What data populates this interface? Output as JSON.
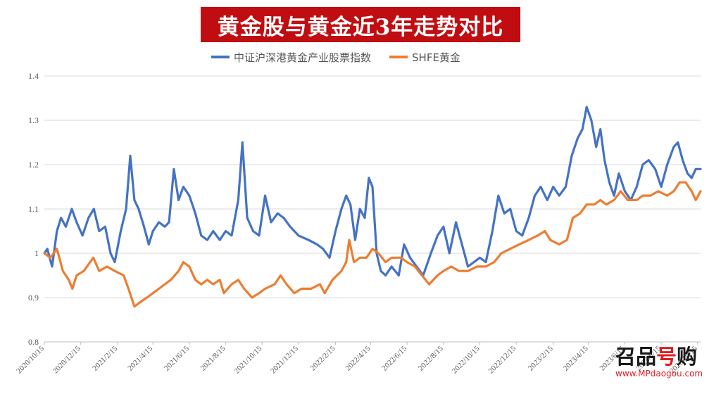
{
  "title": "黄金股与黄金近3年走势对比",
  "watermark": {
    "logo_main": "召品",
    "logo_accent": "号",
    "logo_tail": "购",
    "url": "www.MPdaogou.com"
  },
  "colors": {
    "title_bg": "#c00d12",
    "series_blue": "#4472c4",
    "series_orange": "#ed7d31",
    "grid": "#d9d9d9"
  },
  "chart_data": {
    "type": "line",
    "title": "黄金股与黄金近3年走势对比",
    "xlabel": "",
    "ylabel": "",
    "ylim": [
      0.8,
      1.4
    ],
    "yticks": [
      "0.8",
      "0.9",
      "1",
      "1.1",
      "1.2",
      "1.3",
      "1.4"
    ],
    "xlim": [
      "2020-10-15",
      "2023-10-20"
    ],
    "xticks": [
      "2020/10/15",
      "2020/12/15",
      "2021/2/15",
      "2021/4/15",
      "2021/6/15",
      "2021/8/15",
      "2021/10/15",
      "2021/12/15",
      "2022/2/15",
      "2022/4/15",
      "2022/6/15",
      "2022/8/15",
      "2022/10/15",
      "2022/12/15",
      "2023/2/15",
      "2023/4/15",
      "2023/6/15",
      "2023/8/15",
      "2023/10/15"
    ],
    "legend_position": "top-center",
    "grid": "horizontal",
    "series": [
      {
        "name": "中证沪深港黄金产业股票指数",
        "color": "#4472c4",
        "points": [
          [
            "2020-10-15",
            1.0
          ],
          [
            "2020-10-20",
            1.01
          ],
          [
            "2020-10-28",
            0.97
          ],
          [
            "2020-11-05",
            1.05
          ],
          [
            "2020-11-12",
            1.08
          ],
          [
            "2020-11-20",
            1.06
          ],
          [
            "2020-11-30",
            1.1
          ],
          [
            "2020-12-08",
            1.07
          ],
          [
            "2020-12-18",
            1.04
          ],
          [
            "2020-12-28",
            1.08
          ],
          [
            "2021-01-06",
            1.1
          ],
          [
            "2021-01-15",
            1.05
          ],
          [
            "2021-01-25",
            1.06
          ],
          [
            "2021-02-03",
            1.0
          ],
          [
            "2021-02-10",
            0.98
          ],
          [
            "2021-02-20",
            1.05
          ],
          [
            "2021-03-01",
            1.1
          ],
          [
            "2021-03-08",
            1.22
          ],
          [
            "2021-03-15",
            1.12
          ],
          [
            "2021-03-22",
            1.1
          ],
          [
            "2021-03-31",
            1.06
          ],
          [
            "2021-04-08",
            1.02
          ],
          [
            "2021-04-15",
            1.05
          ],
          [
            "2021-04-25",
            1.07
          ],
          [
            "2021-05-05",
            1.06
          ],
          [
            "2021-05-12",
            1.07
          ],
          [
            "2021-05-20",
            1.19
          ],
          [
            "2021-05-28",
            1.12
          ],
          [
            "2021-06-05",
            1.15
          ],
          [
            "2021-06-15",
            1.13
          ],
          [
            "2021-06-25",
            1.09
          ],
          [
            "2021-07-05",
            1.04
          ],
          [
            "2021-07-15",
            1.03
          ],
          [
            "2021-07-25",
            1.05
          ],
          [
            "2021-08-05",
            1.03
          ],
          [
            "2021-08-15",
            1.05
          ],
          [
            "2021-08-25",
            1.04
          ],
          [
            "2021-09-05",
            1.12
          ],
          [
            "2021-09-12",
            1.25
          ],
          [
            "2021-09-20",
            1.08
          ],
          [
            "2021-09-30",
            1.05
          ],
          [
            "2021-10-10",
            1.04
          ],
          [
            "2021-10-20",
            1.13
          ],
          [
            "2021-10-30",
            1.07
          ],
          [
            "2021-11-10",
            1.09
          ],
          [
            "2021-11-20",
            1.08
          ],
          [
            "2021-12-01",
            1.06
          ],
          [
            "2021-12-15",
            1.04
          ],
          [
            "2022-01-01",
            1.03
          ],
          [
            "2022-01-15",
            1.02
          ],
          [
            "2022-01-25",
            1.01
          ],
          [
            "2022-02-05",
            0.99
          ],
          [
            "2022-02-15",
            1.05
          ],
          [
            "2022-02-25",
            1.1
          ],
          [
            "2022-03-05",
            1.13
          ],
          [
            "2022-03-12",
            1.11
          ],
          [
            "2022-03-20",
            1.03
          ],
          [
            "2022-03-28",
            1.1
          ],
          [
            "2022-04-05",
            1.08
          ],
          [
            "2022-04-12",
            1.17
          ],
          [
            "2022-04-18",
            1.15
          ],
          [
            "2022-04-25",
            1.0
          ],
          [
            "2022-05-02",
            0.96
          ],
          [
            "2022-05-10",
            0.95
          ],
          [
            "2022-05-20",
            0.97
          ],
          [
            "2022-06-01",
            0.95
          ],
          [
            "2022-06-10",
            1.02
          ],
          [
            "2022-06-20",
            0.99
          ],
          [
            "2022-07-01",
            0.97
          ],
          [
            "2022-07-12",
            0.95
          ],
          [
            "2022-07-25",
            1.0
          ],
          [
            "2022-08-05",
            1.04
          ],
          [
            "2022-08-15",
            1.06
          ],
          [
            "2022-08-25",
            1.0
          ],
          [
            "2022-09-05",
            1.07
          ],
          [
            "2022-09-15",
            1.02
          ],
          [
            "2022-09-25",
            0.97
          ],
          [
            "2022-10-05",
            0.98
          ],
          [
            "2022-10-15",
            0.99
          ],
          [
            "2022-10-25",
            0.98
          ],
          [
            "2022-11-05",
            1.05
          ],
          [
            "2022-11-15",
            1.13
          ],
          [
            "2022-11-25",
            1.09
          ],
          [
            "2022-12-05",
            1.1
          ],
          [
            "2022-12-15",
            1.05
          ],
          [
            "2022-12-25",
            1.04
          ],
          [
            "2023-01-05",
            1.08
          ],
          [
            "2023-01-15",
            1.13
          ],
          [
            "2023-01-25",
            1.15
          ],
          [
            "2023-02-05",
            1.12
          ],
          [
            "2023-02-15",
            1.15
          ],
          [
            "2023-02-25",
            1.13
          ],
          [
            "2023-03-08",
            1.15
          ],
          [
            "2023-03-18",
            1.22
          ],
          [
            "2023-03-28",
            1.26
          ],
          [
            "2023-04-05",
            1.28
          ],
          [
            "2023-04-12",
            1.33
          ],
          [
            "2023-04-20",
            1.3
          ],
          [
            "2023-04-28",
            1.24
          ],
          [
            "2023-05-05",
            1.28
          ],
          [
            "2023-05-12",
            1.21
          ],
          [
            "2023-05-20",
            1.16
          ],
          [
            "2023-05-28",
            1.13
          ],
          [
            "2023-06-05",
            1.18
          ],
          [
            "2023-06-15",
            1.14
          ],
          [
            "2023-06-25",
            1.12
          ],
          [
            "2023-07-05",
            1.15
          ],
          [
            "2023-07-15",
            1.2
          ],
          [
            "2023-07-25",
            1.21
          ],
          [
            "2023-08-05",
            1.19
          ],
          [
            "2023-08-15",
            1.15
          ],
          [
            "2023-08-25",
            1.2
          ],
          [
            "2023-09-05",
            1.24
          ],
          [
            "2023-09-12",
            1.25
          ],
          [
            "2023-09-20",
            1.21
          ],
          [
            "2023-09-28",
            1.18
          ],
          [
            "2023-10-05",
            1.17
          ],
          [
            "2023-10-12",
            1.19
          ],
          [
            "2023-10-20",
            1.19
          ]
        ]
      },
      {
        "name": "SHFE黄金",
        "color": "#ed7d31",
        "points": [
          [
            "2020-10-15",
            1.0
          ],
          [
            "2020-10-25",
            0.99
          ],
          [
            "2020-11-05",
            1.01
          ],
          [
            "2020-11-15",
            0.96
          ],
          [
            "2020-11-25",
            0.94
          ],
          [
            "2020-12-01",
            0.92
          ],
          [
            "2020-12-08",
            0.95
          ],
          [
            "2020-12-20",
            0.96
          ],
          [
            "2021-01-05",
            0.99
          ],
          [
            "2021-01-15",
            0.96
          ],
          [
            "2021-01-28",
            0.97
          ],
          [
            "2021-02-10",
            0.96
          ],
          [
            "2021-02-25",
            0.95
          ],
          [
            "2021-03-05",
            0.92
          ],
          [
            "2021-03-15",
            0.88
          ],
          [
            "2021-03-25",
            0.89
          ],
          [
            "2021-04-05",
            0.9
          ],
          [
            "2021-04-15",
            0.91
          ],
          [
            "2021-04-25",
            0.92
          ],
          [
            "2021-05-05",
            0.93
          ],
          [
            "2021-05-15",
            0.94
          ],
          [
            "2021-05-28",
            0.96
          ],
          [
            "2021-06-05",
            0.98
          ],
          [
            "2021-06-15",
            0.97
          ],
          [
            "2021-06-25",
            0.94
          ],
          [
            "2021-07-05",
            0.93
          ],
          [
            "2021-07-15",
            0.94
          ],
          [
            "2021-07-25",
            0.93
          ],
          [
            "2021-08-05",
            0.94
          ],
          [
            "2021-08-12",
            0.91
          ],
          [
            "2021-08-25",
            0.93
          ],
          [
            "2021-09-05",
            0.94
          ],
          [
            "2021-09-15",
            0.92
          ],
          [
            "2021-09-28",
            0.9
          ],
          [
            "2021-10-10",
            0.91
          ],
          [
            "2021-10-20",
            0.92
          ],
          [
            "2021-11-05",
            0.93
          ],
          [
            "2021-11-15",
            0.95
          ],
          [
            "2021-11-25",
            0.93
          ],
          [
            "2021-12-08",
            0.91
          ],
          [
            "2021-12-20",
            0.92
          ],
          [
            "2022-01-05",
            0.92
          ],
          [
            "2022-01-20",
            0.93
          ],
          [
            "2022-01-28",
            0.91
          ],
          [
            "2022-02-10",
            0.94
          ],
          [
            "2022-02-25",
            0.96
          ],
          [
            "2022-03-05",
            0.98
          ],
          [
            "2022-03-10",
            1.03
          ],
          [
            "2022-03-18",
            0.98
          ],
          [
            "2022-03-28",
            0.99
          ],
          [
            "2022-04-08",
            0.99
          ],
          [
            "2022-04-18",
            1.01
          ],
          [
            "2022-04-28",
            1.0
          ],
          [
            "2022-05-10",
            0.98
          ],
          [
            "2022-05-20",
            0.99
          ],
          [
            "2022-06-05",
            0.99
          ],
          [
            "2022-06-15",
            0.98
          ],
          [
            "2022-06-28",
            0.97
          ],
          [
            "2022-07-10",
            0.95
          ],
          [
            "2022-07-22",
            0.93
          ],
          [
            "2022-08-05",
            0.95
          ],
          [
            "2022-08-15",
            0.96
          ],
          [
            "2022-08-28",
            0.97
          ],
          [
            "2022-09-10",
            0.96
          ],
          [
            "2022-09-25",
            0.96
          ],
          [
            "2022-10-10",
            0.97
          ],
          [
            "2022-10-25",
            0.97
          ],
          [
            "2022-11-08",
            0.98
          ],
          [
            "2022-11-20",
            1.0
          ],
          [
            "2022-12-05",
            1.01
          ],
          [
            "2022-12-20",
            1.02
          ],
          [
            "2023-01-05",
            1.03
          ],
          [
            "2023-01-20",
            1.04
          ],
          [
            "2023-02-01",
            1.05
          ],
          [
            "2023-02-10",
            1.03
          ],
          [
            "2023-02-25",
            1.02
          ],
          [
            "2023-03-10",
            1.03
          ],
          [
            "2023-03-20",
            1.08
          ],
          [
            "2023-04-01",
            1.09
          ],
          [
            "2023-04-12",
            1.11
          ],
          [
            "2023-04-25",
            1.11
          ],
          [
            "2023-05-05",
            1.12
          ],
          [
            "2023-05-15",
            1.11
          ],
          [
            "2023-05-28",
            1.12
          ],
          [
            "2023-06-08",
            1.14
          ],
          [
            "2023-06-20",
            1.12
          ],
          [
            "2023-07-05",
            1.12
          ],
          [
            "2023-07-15",
            1.13
          ],
          [
            "2023-07-28",
            1.13
          ],
          [
            "2023-08-10",
            1.14
          ],
          [
            "2023-08-25",
            1.13
          ],
          [
            "2023-09-05",
            1.14
          ],
          [
            "2023-09-15",
            1.16
          ],
          [
            "2023-09-25",
            1.16
          ],
          [
            "2023-10-05",
            1.14
          ],
          [
            "2023-10-12",
            1.12
          ],
          [
            "2023-10-20",
            1.14
          ]
        ]
      }
    ]
  }
}
